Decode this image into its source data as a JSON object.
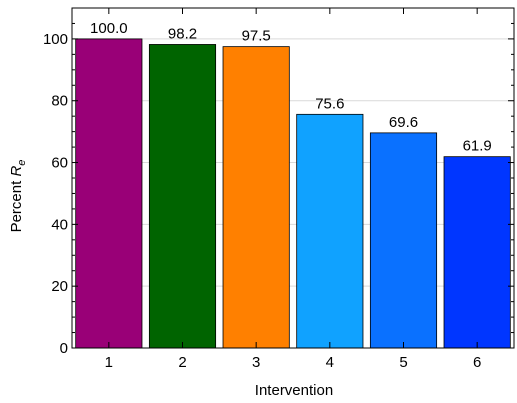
{
  "chart_data": {
    "type": "bar",
    "title": "",
    "xlabel": "Intervention",
    "ylabel_prefix": "Percent ",
    "ylabel_symbol": "R",
    "ylabel_subscript": "e",
    "categories": [
      "1",
      "2",
      "3",
      "4",
      "5",
      "6"
    ],
    "values": [
      100.0,
      98.2,
      97.5,
      75.6,
      69.6,
      61.9
    ],
    "data_labels": [
      "100.0",
      "98.2",
      "97.5",
      "75.6",
      "69.6",
      "61.9"
    ],
    "bar_colors": [
      "#990077",
      "#006400",
      "#ff8000",
      "#10a2ff",
      "#0a71ff",
      "#0036ff"
    ],
    "ylim": [
      0,
      110
    ],
    "yticks": [
      0,
      20,
      40,
      60,
      80,
      100
    ],
    "ytick_labels": [
      "0",
      "20",
      "40",
      "60",
      "80",
      "100"
    ],
    "y_minor_step": 5,
    "grid": "horizontal"
  }
}
